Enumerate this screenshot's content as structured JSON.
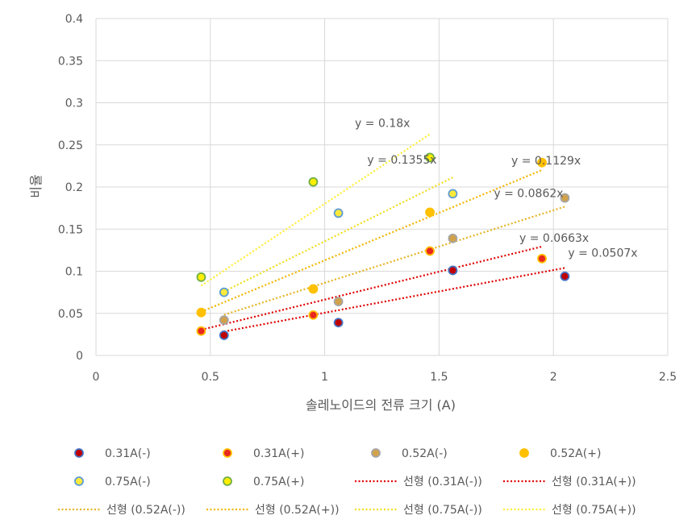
{
  "chart_data": {
    "type": "scatter",
    "xlabel": "솔레노이드의 전류 크기 (A)",
    "ylabel": "비율",
    "xlim": [
      0,
      2.5
    ],
    "ylim": [
      0,
      0.4
    ],
    "xticks": [
      0,
      0.5,
      1,
      1.5,
      2,
      2.5
    ],
    "yticks": [
      0,
      0.05,
      0.1,
      0.15,
      0.2,
      0.25,
      0.3,
      0.35,
      0.4
    ],
    "xtick_labels": [
      "0",
      "0.5",
      "1",
      "1.5",
      "2",
      "2.5"
    ],
    "ytick_labels": [
      "0",
      "0.05",
      "0.1",
      "0.15",
      "0.2",
      "0.25",
      "0.3",
      "0.35",
      "0.4"
    ],
    "grid": true,
    "legend_position": "bottom",
    "series": [
      {
        "name": "0.31A(-)",
        "color": "#c00000",
        "edge": "#4472c4",
        "x": [
          0.56,
          1.06,
          1.56,
          2.05
        ],
        "y": [
          0.024,
          0.039,
          0.101,
          0.094
        ],
        "trend": {
          "name": "선형 (0.31A(-))",
          "slope": 0.0507,
          "equation": "y = 0.0507x",
          "color": "#e00000"
        }
      },
      {
        "name": "0.31A(+)",
        "color": "#e8281e",
        "edge": "#ffc000",
        "x": [
          0.46,
          0.95,
          1.46,
          1.95
        ],
        "y": [
          0.029,
          0.048,
          0.124,
          0.115
        ],
        "trend": {
          "name": "선형 (0.31A(+))",
          "slope": 0.0663,
          "equation": "y = 0.0663x",
          "color": "#e00000"
        }
      },
      {
        "name": "0.52A(-)",
        "color": "#d2a24a",
        "edge": "#a5a5a5",
        "x": [
          0.56,
          1.06,
          1.56,
          2.05
        ],
        "y": [
          0.042,
          0.064,
          0.139,
          0.187
        ],
        "trend": {
          "name": "선형 (0.52A(-))",
          "slope": 0.0862,
          "equation": "y = 0.0862x",
          "color": "#e6b422"
        }
      },
      {
        "name": "0.52A(+)",
        "color": "#ffc000",
        "edge": "#ffc000",
        "x": [
          0.46,
          0.95,
          1.46,
          1.95
        ],
        "y": [
          0.051,
          0.079,
          0.17,
          0.229
        ],
        "trend": {
          "name": "선형 (0.52A(+))",
          "slope": 0.1129,
          "equation": "y = 0.1129x",
          "color": "#f2b600"
        }
      },
      {
        "name": "0.75A(-)",
        "color": "#ffea3a",
        "edge": "#5b9bd5",
        "x": [
          0.56,
          1.06,
          1.56
        ],
        "y": [
          0.075,
          0.169,
          0.192
        ],
        "trend": {
          "name": "선형 (0.75A(-))",
          "slope": 0.1355,
          "equation": "y = 0.1355x",
          "color": "#f2dd1c"
        }
      },
      {
        "name": "0.75A(+)",
        "color": "#ffee00",
        "edge": "#70ad47",
        "x": [
          0.46,
          0.95,
          1.46
        ],
        "y": [
          0.093,
          0.206,
          0.235
        ],
        "trend": {
          "name": "선형 (0.75A(+))",
          "slope": 0.18,
          "equation": "y = 0.18x",
          "color": "#ffee33"
        }
      }
    ]
  }
}
